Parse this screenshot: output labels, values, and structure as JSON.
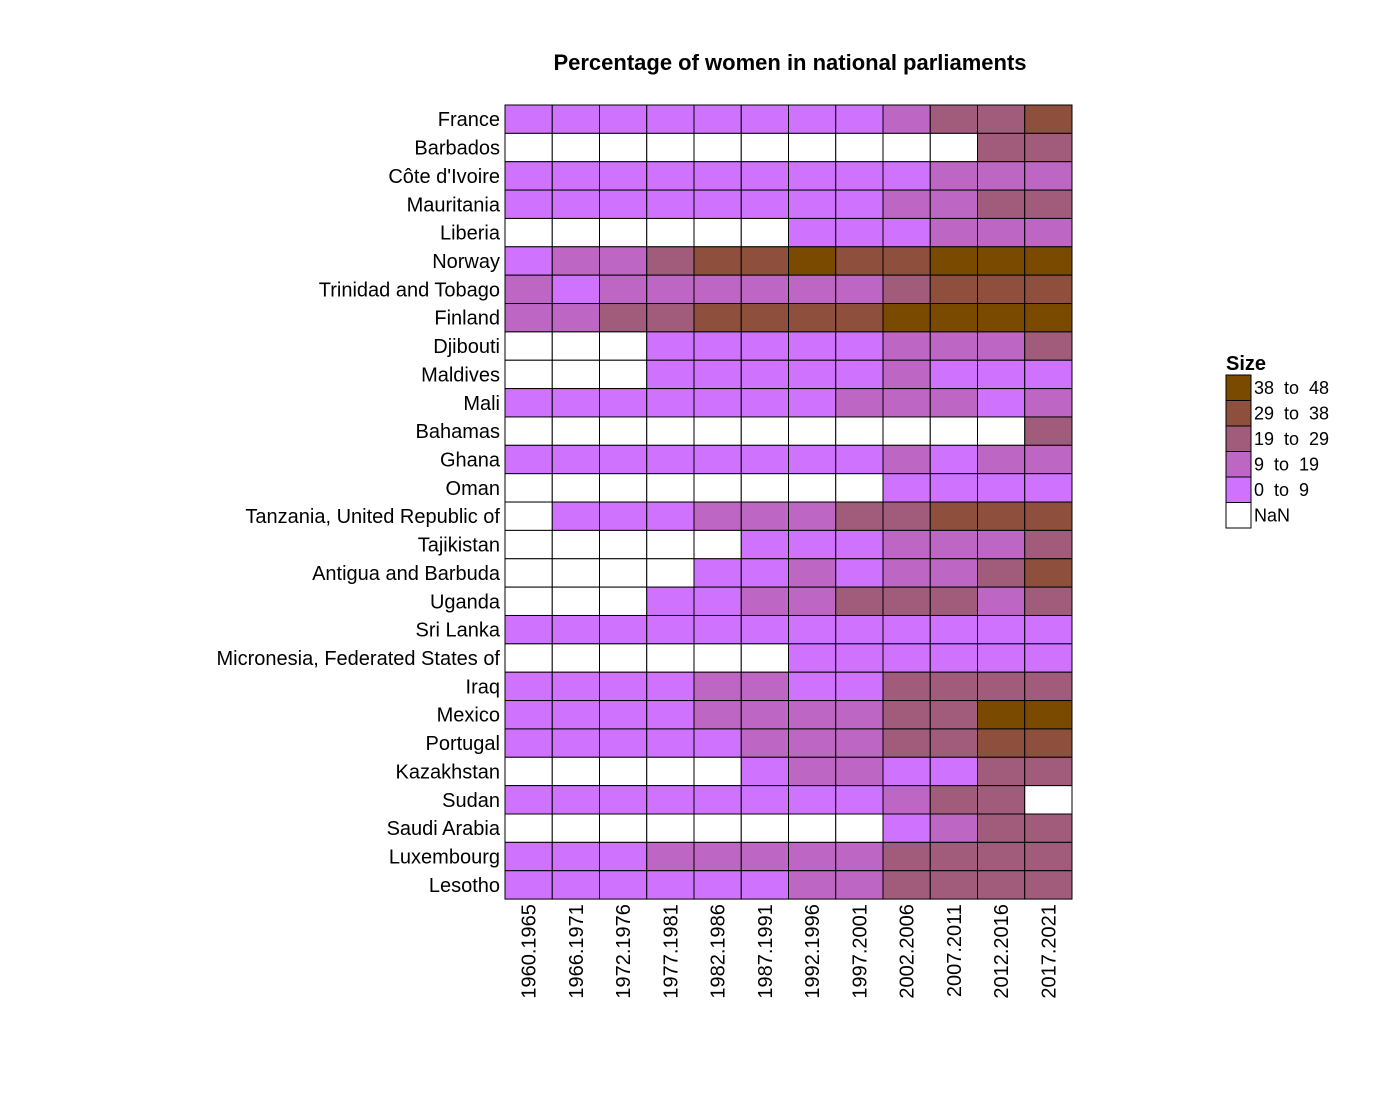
{
  "chart_data": {
    "type": "heatmap",
    "title": "Percentage of women in national parliaments",
    "rows": [
      "France",
      "Barbados",
      "Côte d'Ivoire",
      "Mauritania",
      "Liberia",
      "Norway",
      "Trinidad and Tobago",
      "Finland",
      "Djibouti",
      "Maldives",
      "Mali",
      "Bahamas",
      "Ghana",
      "Oman",
      "Tanzania, United Republic of",
      "Tajikistan",
      "Antigua and Barbuda",
      "Uganda",
      "Sri Lanka",
      "Micronesia, Federated States of",
      "Iraq",
      "Mexico",
      "Portugal",
      "Kazakhstan",
      "Sudan",
      "Saudi Arabia",
      "Luxembourg",
      "Lesotho"
    ],
    "columns": [
      "1960.1965",
      "1966.1971",
      "1972.1976",
      "1977.1981",
      "1982.1986",
      "1987.1991",
      "1992.1996",
      "1997.2001",
      "2002.2006",
      "2007.2011",
      "2012.2016",
      "2017.2021"
    ],
    "bins": [
      {
        "label": "38  to  48",
        "color": "#7a4a00"
      },
      {
        "label": "29  to  38",
        "color": "#8f4f3d"
      },
      {
        "label": "19  to  29",
        "color": "#a05c7a"
      },
      {
        "label": "9  to  19",
        "color": "#bd66c4"
      },
      {
        "label": "0  to  9",
        "color": "#cf73ff"
      },
      {
        "label": "NaN",
        "color": "#ffffff"
      }
    ],
    "cells": [
      [
        1,
        1,
        1,
        1,
        1,
        1,
        1,
        1,
        2,
        3,
        3,
        4
      ],
      [
        0,
        0,
        0,
        0,
        0,
        0,
        0,
        0,
        0,
        0,
        3,
        3
      ],
      [
        1,
        1,
        1,
        1,
        1,
        1,
        1,
        1,
        1,
        2,
        2,
        2
      ],
      [
        1,
        1,
        1,
        1,
        1,
        1,
        1,
        1,
        2,
        2,
        3,
        3
      ],
      [
        0,
        0,
        0,
        0,
        0,
        0,
        1,
        1,
        1,
        2,
        2,
        2
      ],
      [
        1,
        2,
        2,
        3,
        4,
        4,
        5,
        4,
        4,
        5,
        5,
        5
      ],
      [
        2,
        1,
        2,
        2,
        2,
        2,
        2,
        2,
        3,
        4,
        4,
        4
      ],
      [
        2,
        2,
        3,
        3,
        4,
        4,
        4,
        4,
        5,
        5,
        5,
        5
      ],
      [
        0,
        0,
        0,
        1,
        1,
        1,
        1,
        1,
        2,
        2,
        2,
        3
      ],
      [
        0,
        0,
        0,
        1,
        1,
        1,
        1,
        1,
        2,
        1,
        1,
        1
      ],
      [
        1,
        1,
        1,
        1,
        1,
        1,
        1,
        2,
        2,
        2,
        1,
        2
      ],
      [
        0,
        0,
        0,
        0,
        0,
        0,
        0,
        0,
        0,
        0,
        0,
        3
      ],
      [
        1,
        1,
        1,
        1,
        1,
        1,
        1,
        1,
        2,
        1,
        2,
        2
      ],
      [
        0,
        0,
        0,
        0,
        0,
        0,
        0,
        0,
        1,
        1,
        1,
        1
      ],
      [
        0,
        1,
        1,
        1,
        2,
        2,
        2,
        3,
        3,
        4,
        4,
        4
      ],
      [
        0,
        0,
        0,
        0,
        0,
        1,
        1,
        1,
        2,
        2,
        2,
        3
      ],
      [
        0,
        0,
        0,
        0,
        1,
        1,
        2,
        1,
        2,
        2,
        3,
        4
      ],
      [
        0,
        0,
        0,
        1,
        1,
        2,
        2,
        3,
        3,
        3,
        2,
        3
      ],
      [
        1,
        1,
        1,
        1,
        1,
        1,
        1,
        1,
        1,
        1,
        1,
        1
      ],
      [
        0,
        0,
        0,
        0,
        0,
        0,
        1,
        1,
        1,
        1,
        1,
        1
      ],
      [
        1,
        1,
        1,
        1,
        2,
        2,
        1,
        1,
        3,
        3,
        3,
        3
      ],
      [
        1,
        1,
        1,
        1,
        2,
        2,
        2,
        2,
        3,
        3,
        5,
        5
      ],
      [
        1,
        1,
        1,
        1,
        1,
        2,
        2,
        2,
        3,
        3,
        4,
        4
      ],
      [
        0,
        0,
        0,
        0,
        0,
        1,
        2,
        2,
        1,
        1,
        3,
        3
      ],
      [
        1,
        1,
        1,
        1,
        1,
        1,
        1,
        1,
        2,
        3,
        3,
        0
      ],
      [
        0,
        0,
        0,
        0,
        0,
        0,
        0,
        0,
        1,
        2,
        3,
        3
      ],
      [
        1,
        1,
        1,
        2,
        2,
        2,
        2,
        2,
        3,
        3,
        3,
        3
      ],
      [
        1,
        1,
        1,
        1,
        1,
        1,
        2,
        2,
        3,
        3,
        3,
        3
      ]
    ],
    "cell_value_meaning": "0 = NaN, 1 = 0 to 9, 2 = 9 to 19, 3 = 19 to 29, 4 = 29 to 38, 5 = 38 to 48",
    "legend": {
      "title": "Size",
      "position": "right"
    }
  }
}
